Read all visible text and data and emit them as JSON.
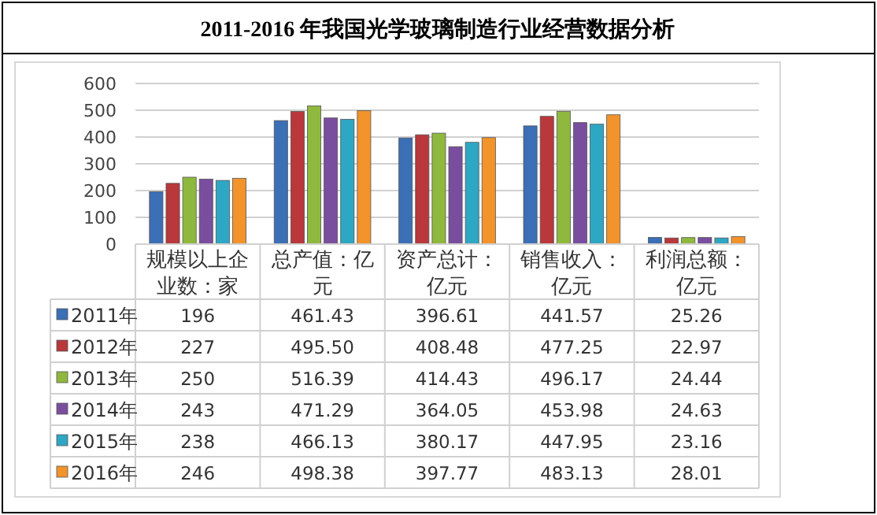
{
  "chart_data": {
    "type": "bar",
    "title": "2011-2016 年我国光学玻璃制造行业经营数据分析",
    "categories": [
      "规模以上企业数：家",
      "总产值：亿元",
      "资产总计：亿元",
      "销售收入：亿元",
      "利润总额：亿元"
    ],
    "ylim": [
      0,
      600
    ],
    "yticks": [
      0,
      100,
      200,
      300,
      400,
      500,
      600
    ],
    "grid": "y",
    "legend": "bottom",
    "series": [
      {
        "name": "2011年",
        "color": "#3b6fb6",
        "values": [
          196,
          461.43,
          396.61,
          441.57,
          25.26
        ],
        "value_labels": [
          "196",
          "461.43",
          "396.61",
          "441.57",
          "25.26"
        ]
      },
      {
        "name": "2012年",
        "color": "#b8383b",
        "values": [
          227,
          495.5,
          408.48,
          477.25,
          22.97
        ],
        "value_labels": [
          "227",
          "495.50",
          "408.48",
          "477.25",
          "22.97"
        ]
      },
      {
        "name": "2013年",
        "color": "#8fb83e",
        "values": [
          250,
          516.39,
          414.43,
          496.17,
          24.44
        ],
        "value_labels": [
          "250",
          "516.39",
          "414.43",
          "496.17",
          "24.44"
        ]
      },
      {
        "name": "2014年",
        "color": "#7a4e9e",
        "values": [
          243,
          471.29,
          364.05,
          453.98,
          24.63
        ],
        "value_labels": [
          "243",
          "471.29",
          "364.05",
          "453.98",
          "24.63"
        ]
      },
      {
        "name": "2015年",
        "color": "#2ea7c4",
        "values": [
          238,
          466.13,
          380.17,
          447.95,
          23.16
        ],
        "value_labels": [
          "238",
          "466.13",
          "380.17",
          "447.95",
          "23.16"
        ]
      },
      {
        "name": "2016年",
        "color": "#f2932c",
        "values": [
          246,
          498.38,
          397.77,
          483.13,
          28.01
        ],
        "value_labels": [
          "246",
          "498.38",
          "397.77",
          "483.13",
          "28.01"
        ]
      }
    ]
  }
}
